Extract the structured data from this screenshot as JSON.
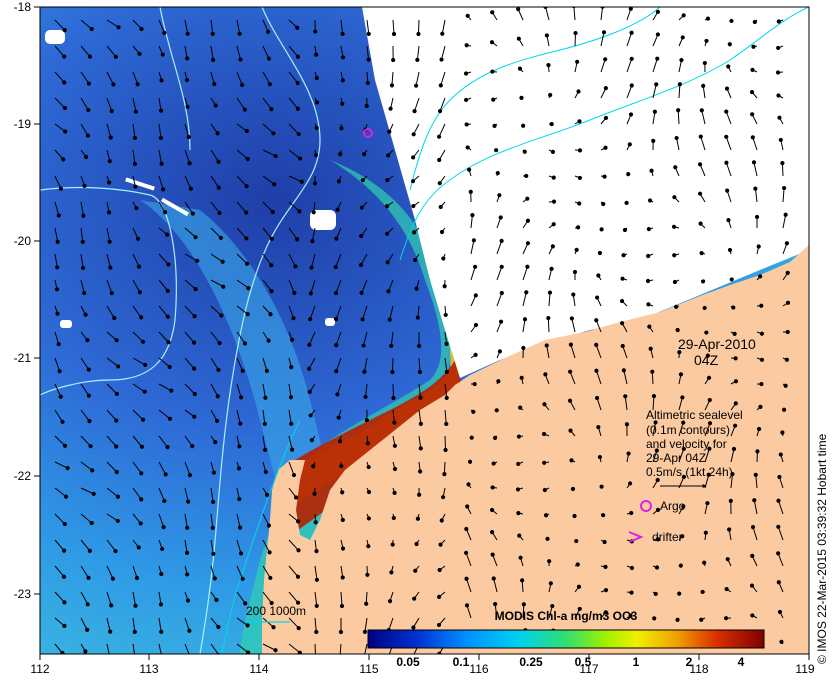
{
  "map": {
    "lon_ticks": [
      "112",
      "113",
      "114",
      "115",
      "116",
      "117",
      "118",
      "119"
    ],
    "lat_ticks": [
      "-18",
      "-19",
      "-20",
      "-21",
      "-22",
      "-23"
    ],
    "date": "29-Apr-2010",
    "time": "04Z",
    "legend": {
      "line1": "Altimetric sealevel",
      "line2": "(0.1m contours)",
      "line3": "and velocity for",
      "line4": "29-Apr 04Z",
      "line5": "0.5m/s (1kt 24h)",
      "argo_label": "Argo",
      "drifter_label": "drifter"
    },
    "depth_label": "200  1000m",
    "colorbar": {
      "title": "MODIS Chl-a mg/m3 OC3",
      "ticks": [
        "0.05",
        "0.1",
        "0.25",
        "0.5",
        "1",
        "2",
        "4"
      ]
    },
    "credit": "© IMOS 22-Mar-2015 03:39:32 Hobart time",
    "colors": {
      "land": "#fbcaa0",
      "ocean_deep": "#2a4fc4",
      "contour": "#00e0f0",
      "marker": "#e020e0"
    }
  }
}
